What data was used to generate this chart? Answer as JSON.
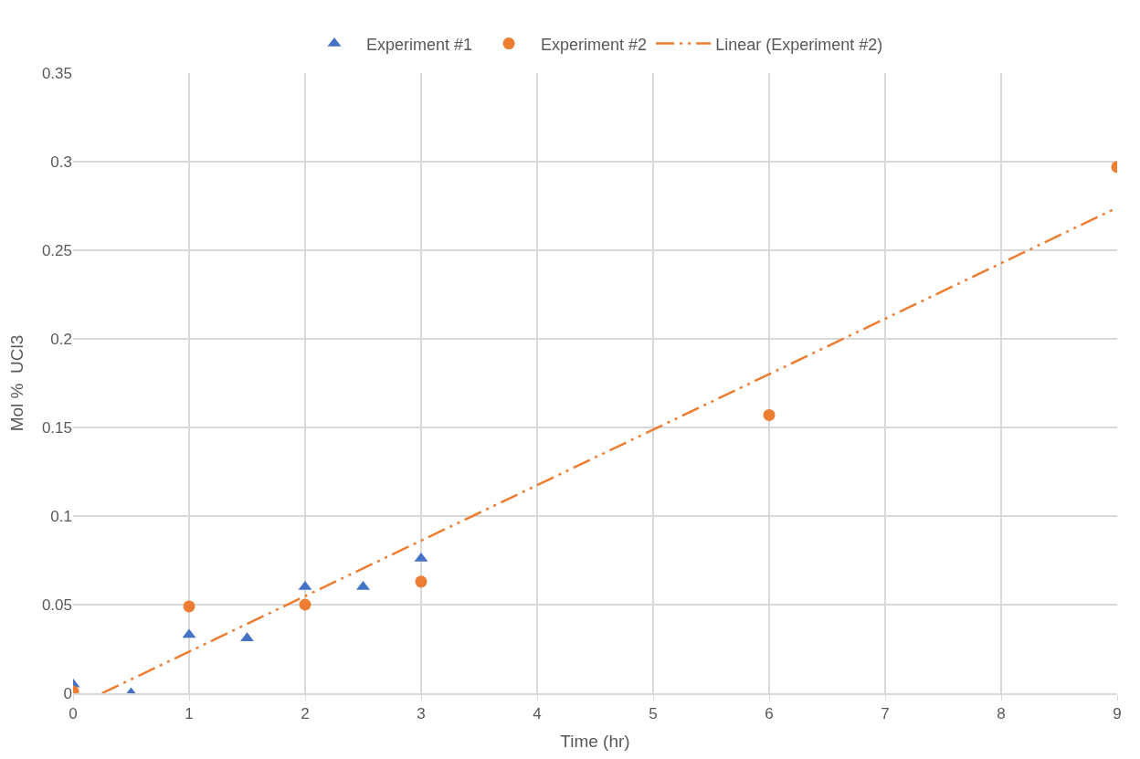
{
  "chart_data": {
    "type": "scatter",
    "xlabel": "Time (hr)",
    "ylabel": "Mol %  UCl3",
    "xlim": [
      0,
      9
    ],
    "xticks": [
      0,
      1,
      2,
      3,
      4,
      5,
      6,
      7,
      8,
      9
    ],
    "ylim": [
      0,
      0.35
    ],
    "yticks": [
      0,
      0.05,
      0.1,
      0.15,
      0.2,
      0.25,
      0.3,
      0.35
    ],
    "grid": true,
    "legend": "top",
    "series": [
      {
        "name": "Experiment #1",
        "color": "#4472c4",
        "marker": "triangle",
        "x": [
          0,
          0.5,
          1,
          1.5,
          2,
          2.5,
          3
        ],
        "values": [
          0.005,
          0,
          0.033,
          0.031,
          0.06,
          0.06,
          0.076
        ]
      },
      {
        "name": "Experiment #2",
        "color": "#ed7d31",
        "marker": "circle",
        "x": [
          0,
          1,
          2,
          3,
          6,
          9
        ],
        "values": [
          0.001,
          0.049,
          0.05,
          0.063,
          0.157,
          0.297
        ]
      },
      {
        "name": "Linear (Experiment #2)",
        "type": "line",
        "color": "#ed7d31",
        "line_style": "dashed",
        "marker": "none",
        "x": [
          0.25,
          9
        ],
        "values": [
          0,
          0.274
        ]
      }
    ]
  }
}
